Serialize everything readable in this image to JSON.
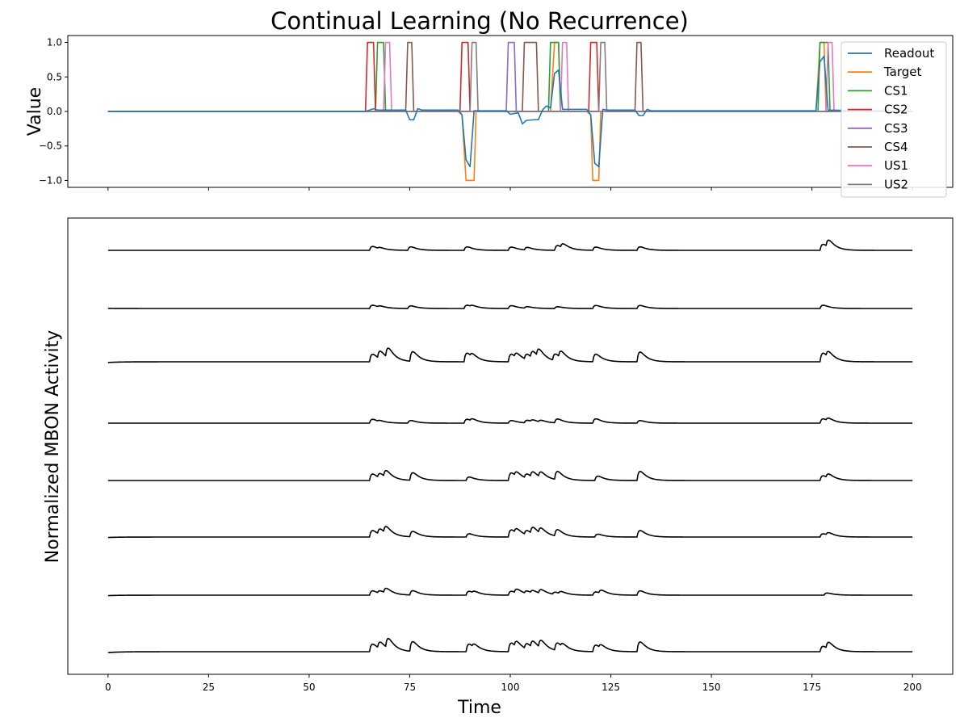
{
  "title": "Continual Learning (No Recurrence)",
  "chart_data": [
    {
      "type": "line",
      "ylabel": "Value",
      "xlabel": "",
      "xlim": [
        -10,
        210
      ],
      "ylim": [
        -1.1,
        1.1
      ],
      "yticks": [
        1.0,
        0.5,
        0.0,
        -0.5,
        -1.0
      ],
      "ytick_labels": [
        "1.0",
        "0.5",
        "0.0",
        "−0.5",
        "−1.0"
      ],
      "xticks": [
        0,
        25,
        50,
        75,
        100,
        125,
        150,
        175,
        200
      ],
      "legend_position": "upper-right",
      "series": [
        {
          "name": "Readout",
          "color": "#1f77b4",
          "points": [
            [
              0,
              0
            ],
            [
              64,
              0
            ],
            [
              66,
              0.04
            ],
            [
              67,
              0.02
            ],
            [
              68,
              0.02
            ],
            [
              74,
              0.02
            ],
            [
              75,
              -0.12
            ],
            [
              76,
              -0.12
            ],
            [
              77,
              0.04
            ],
            [
              78,
              0.02
            ],
            [
              87,
              0.02
            ],
            [
              88,
              -0.05
            ],
            [
              89,
              -0.7
            ],
            [
              90,
              -0.8
            ],
            [
              91,
              0.01
            ],
            [
              99,
              0.01
            ],
            [
              100,
              -0.04
            ],
            [
              102,
              -0.02
            ],
            [
              103,
              -0.18
            ],
            [
              104,
              -0.13
            ],
            [
              106,
              -0.12
            ],
            [
              107,
              -0.12
            ],
            [
              108,
              0.02
            ],
            [
              109,
              0.08
            ],
            [
              110,
              0.05
            ],
            [
              111,
              0.55
            ],
            [
              112,
              0.6
            ],
            [
              113,
              0.03
            ],
            [
              119,
              0.03
            ],
            [
              120,
              -0.05
            ],
            [
              121,
              -0.75
            ],
            [
              122,
              -0.8
            ],
            [
              123,
              0.03
            ],
            [
              124,
              0.02
            ],
            [
              131,
              0.02
            ],
            [
              132,
              -0.06
            ],
            [
              133,
              -0.06
            ],
            [
              134,
              0.03
            ],
            [
              135,
              0.01
            ],
            [
              176,
              0.01
            ],
            [
              177,
              0.72
            ],
            [
              178,
              0.8
            ],
            [
              179,
              0.02
            ],
            [
              200,
              0
            ]
          ]
        },
        {
          "name": "Target",
          "color": "#ff7f0e",
          "points": [
            [
              0,
              0
            ],
            [
              87,
              0
            ],
            [
              88,
              -0.05
            ],
            [
              89,
              -1
            ],
            [
              91,
              -1
            ],
            [
              91.5,
              0
            ],
            [
              110,
              0
            ],
            [
              111,
              1
            ],
            [
              112,
              1
            ],
            [
              112.5,
              0
            ],
            [
              119,
              0
            ],
            [
              120,
              -0.05
            ],
            [
              120.5,
              -1
            ],
            [
              122,
              -1
            ],
            [
              122.5,
              0
            ],
            [
              176,
              0
            ],
            [
              177,
              1
            ],
            [
              178,
              1
            ],
            [
              178.5,
              0
            ],
            [
              200,
              0
            ]
          ]
        },
        {
          "name": "CS1",
          "color": "#2ca02c",
          "points": [
            [
              0,
              0
            ],
            [
              66.5,
              0
            ],
            [
              67,
              1
            ],
            [
              68.5,
              1
            ],
            [
              69,
              0
            ],
            [
              109.5,
              0
            ],
            [
              110,
              1
            ],
            [
              112,
              1
            ],
            [
              112.5,
              0
            ],
            [
              176.5,
              0
            ],
            [
              177,
              1
            ],
            [
              179,
              1
            ],
            [
              179.5,
              0
            ],
            [
              200,
              0
            ]
          ]
        },
        {
          "name": "CS2",
          "color": "#d62728",
          "points": [
            [
              0,
              0
            ],
            [
              64,
              0
            ],
            [
              64.5,
              1
            ],
            [
              66,
              1
            ],
            [
              66.5,
              0
            ],
            [
              87.5,
              0
            ],
            [
              88,
              1
            ],
            [
              89.5,
              1
            ],
            [
              90,
              0
            ],
            [
              119.5,
              0
            ],
            [
              120,
              1
            ],
            [
              121.5,
              1
            ],
            [
              122,
              0
            ],
            [
              200,
              0
            ]
          ]
        },
        {
          "name": "CS3",
          "color": "#9467bd",
          "points": [
            [
              0,
              0
            ],
            [
              99,
              0
            ],
            [
              99.5,
              1
            ],
            [
              101,
              1
            ],
            [
              101.5,
              0
            ],
            [
              200,
              0
            ]
          ]
        },
        {
          "name": "CS4",
          "color": "#8c564b",
          "points": [
            [
              0,
              0
            ],
            [
              74,
              0
            ],
            [
              74.5,
              1
            ],
            [
              75.5,
              1
            ],
            [
              76,
              0
            ],
            [
              103,
              0
            ],
            [
              103.5,
              1
            ],
            [
              106.5,
              1
            ],
            [
              107,
              0
            ],
            [
              131,
              0
            ],
            [
              131.5,
              1
            ],
            [
              132.5,
              1
            ],
            [
              133,
              0
            ],
            [
              200,
              0
            ]
          ]
        },
        {
          "name": "US1",
          "color": "#e377c2",
          "points": [
            [
              0,
              0
            ],
            [
              68.5,
              0
            ],
            [
              69,
              1
            ],
            [
              70,
              1
            ],
            [
              70.5,
              0
            ],
            [
              112.5,
              0
            ],
            [
              113,
              1
            ],
            [
              114,
              1
            ],
            [
              114.5,
              0
            ],
            [
              178.5,
              0
            ],
            [
              179,
              1
            ],
            [
              180,
              1
            ],
            [
              180.5,
              0
            ],
            [
              200,
              0
            ]
          ]
        },
        {
          "name": "US2",
          "color": "#7f7f7f",
          "points": [
            [
              0,
              0
            ],
            [
              90,
              0
            ],
            [
              90.5,
              1
            ],
            [
              91.5,
              1
            ],
            [
              92,
              0
            ],
            [
              122,
              0
            ],
            [
              122.5,
              1
            ],
            [
              123.5,
              1
            ],
            [
              124,
              0
            ],
            [
              200,
              0
            ]
          ]
        }
      ]
    },
    {
      "type": "line",
      "xlabel": "Time",
      "ylabel": "Normalized MBON Activity",
      "xlim": [
        -10,
        210
      ],
      "xticks": [
        0,
        25,
        50,
        75,
        100,
        125,
        150,
        175,
        200
      ],
      "y_axis": "hidden",
      "color": "#000000",
      "series": [
        {
          "baseline": 0.9,
          "initial": [
            0.0,
            1.0
          ],
          "bumps": [
            [
              65,
              0.18
            ],
            [
              67,
              0.06
            ],
            [
              74.5,
              0.16
            ],
            [
              88.5,
              0.16
            ],
            [
              99.5,
              0.15
            ],
            [
              103.5,
              0.12
            ],
            [
              111,
              0.22
            ],
            [
              112.5,
              0.18
            ],
            [
              120.5,
              0.15
            ],
            [
              131.5,
              0.16
            ],
            [
              177,
              0.28
            ],
            [
              178.5,
              0.32
            ]
          ]
        },
        {
          "baseline": 0.9,
          "initial": [
            0.0,
            1.05
          ],
          "bumps": [
            [
              65,
              0.15
            ],
            [
              67,
              0.06
            ],
            [
              74.5,
              0.12
            ],
            [
              88.5,
              0.15
            ],
            [
              90,
              0.06
            ],
            [
              99.5,
              0.13
            ],
            [
              103.5,
              0.07
            ],
            [
              111,
              0.08
            ],
            [
              120.5,
              0.14
            ],
            [
              131.5,
              0.14
            ],
            [
              177,
              0.15
            ]
          ]
        },
        {
          "baseline": 0.9,
          "initial": [
            0.0,
            0.75
          ],
          "bumps": [
            [
              65,
              0.35
            ],
            [
              67,
              0.35
            ],
            [
              69,
              0.45
            ],
            [
              75,
              0.45
            ],
            [
              88.5,
              0.4
            ],
            [
              90,
              0.15
            ],
            [
              99.5,
              0.35
            ],
            [
              101,
              0.2
            ],
            [
              103.5,
              0.25
            ],
            [
              105,
              0.3
            ],
            [
              106.5,
              0.35
            ],
            [
              110.5,
              0.3
            ],
            [
              112,
              0.3
            ],
            [
              120.5,
              0.35
            ],
            [
              131.5,
              0.45
            ],
            [
              177,
              0.4
            ],
            [
              178.5,
              0.25
            ]
          ]
        },
        {
          "baseline": 0.9,
          "initial": [
            0.0,
            1.0
          ],
          "bumps": [
            [
              65,
              0.18
            ],
            [
              67,
              0.05
            ],
            [
              74.5,
              0.12
            ],
            [
              88.5,
              0.18
            ],
            [
              90,
              0.1
            ],
            [
              99.5,
              0.12
            ],
            [
              103.5,
              0.12
            ],
            [
              105,
              0.08
            ],
            [
              107,
              0.08
            ],
            [
              111,
              0.18
            ],
            [
              120.5,
              0.2
            ],
            [
              131.5,
              0.12
            ],
            [
              177,
              0.2
            ],
            [
              178.5,
              0.12
            ]
          ]
        },
        {
          "baseline": 0.9,
          "initial": [
            0.0,
            1.0
          ],
          "bumps": [
            [
              65,
              0.3
            ],
            [
              67,
              0.2
            ],
            [
              68.5,
              0.3
            ],
            [
              75,
              0.35
            ],
            [
              89,
              0.16
            ],
            [
              99.5,
              0.35
            ],
            [
              101,
              0.2
            ],
            [
              103.5,
              0.2
            ],
            [
              105,
              0.25
            ],
            [
              107,
              0.25
            ],
            [
              111,
              0.38
            ],
            [
              121,
              0.2
            ],
            [
              131.5,
              0.42
            ],
            [
              177,
              0.22
            ],
            [
              178.5,
              0.18
            ]
          ]
        },
        {
          "baseline": 0.9,
          "initial": [
            0.0,
            0.85
          ],
          "bumps": [
            [
              65,
              0.3
            ],
            [
              67,
              0.25
            ],
            [
              68.5,
              0.3
            ],
            [
              75,
              0.25
            ],
            [
              89,
              0.15
            ],
            [
              99.5,
              0.33
            ],
            [
              101,
              0.2
            ],
            [
              103.5,
              0.2
            ],
            [
              105,
              0.3
            ],
            [
              107,
              0.25
            ],
            [
              111,
              0.3
            ],
            [
              121,
              0.13
            ],
            [
              131.5,
              0.3
            ],
            [
              177,
              0.15
            ],
            [
              178.5,
              0.12
            ]
          ]
        },
        {
          "baseline": 0.9,
          "initial": [
            0.0,
            0.85
          ],
          "bumps": [
            [
              65,
              0.2
            ],
            [
              67,
              0.12
            ],
            [
              68.5,
              0.22
            ],
            [
              75,
              0.2
            ],
            [
              89,
              0.18
            ],
            [
              90.5,
              0.08
            ],
            [
              99.5,
              0.18
            ],
            [
              101,
              0.18
            ],
            [
              103.5,
              0.12
            ],
            [
              105,
              0.12
            ],
            [
              107,
              0.18
            ],
            [
              110.5,
              0.1
            ],
            [
              112,
              0.1
            ],
            [
              120.5,
              0.15
            ],
            [
              122,
              0.15
            ],
            [
              131.5,
              0.2
            ],
            [
              178,
              0.1
            ]
          ]
        },
        {
          "baseline": 0.9,
          "initial": [
            0.0,
            0.7
          ],
          "bumps": [
            [
              65,
              0.35
            ],
            [
              67,
              0.3
            ],
            [
              69,
              0.45
            ],
            [
              75,
              0.45
            ],
            [
              89,
              0.35
            ],
            [
              90.5,
              0.15
            ],
            [
              99.5,
              0.4
            ],
            [
              101,
              0.25
            ],
            [
              103.5,
              0.25
            ],
            [
              105,
              0.3
            ],
            [
              107,
              0.35
            ],
            [
              111,
              0.35
            ],
            [
              112.5,
              0.15
            ],
            [
              120.5,
              0.3
            ],
            [
              122,
              0.15
            ],
            [
              131.5,
              0.45
            ],
            [
              177,
              0.25
            ],
            [
              178.5,
              0.3
            ]
          ]
        }
      ]
    }
  ]
}
